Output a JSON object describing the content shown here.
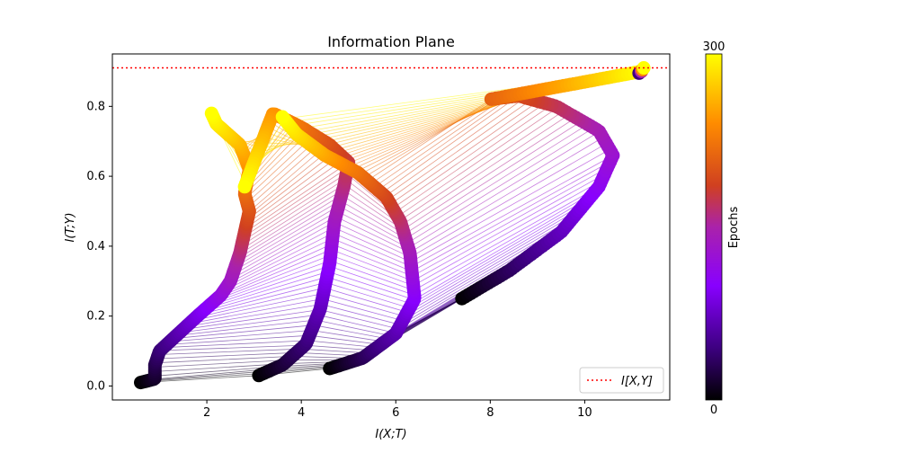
{
  "chart_data": {
    "type": "scatter",
    "title": "Information Plane",
    "xlabel": "I(X;T)",
    "ylabel": "I(T;Y)",
    "xlim": [
      0.0,
      11.8
    ],
    "ylim": [
      -0.04,
      0.95
    ],
    "xticks": [
      "2",
      "4",
      "6",
      "8",
      "10"
    ],
    "xtick_values": [
      2,
      4,
      6,
      8,
      10
    ],
    "yticks": [
      "0.0",
      "0.2",
      "0.4",
      "0.6",
      "0.8"
    ],
    "ytick_values": [
      0.0,
      0.2,
      0.4,
      0.6,
      0.8
    ],
    "grid": false,
    "reference_line": {
      "label": "I[X,Y]",
      "y": 0.91,
      "color": "#ff0000",
      "style": "dotted"
    },
    "legend_position": "lower-right",
    "colorbar": {
      "label": "Epochs",
      "min_label": "0",
      "max_label": "300",
      "min": 0,
      "max": 300,
      "colormap": "gnuplot"
    },
    "series": [
      {
        "points": [
          [
            0.6,
            0.01
          ],
          [
            0.9,
            0.02
          ],
          [
            0.9,
            0.06
          ],
          [
            1.0,
            0.1
          ],
          [
            1.4,
            0.15
          ],
          [
            1.8,
            0.2
          ],
          [
            2.3,
            0.26
          ],
          [
            2.5,
            0.3
          ],
          [
            2.7,
            0.38
          ],
          [
            2.8,
            0.44
          ],
          [
            2.9,
            0.5
          ],
          [
            2.8,
            0.55
          ],
          [
            2.9,
            0.62
          ],
          [
            2.7,
            0.69
          ],
          [
            2.2,
            0.75
          ],
          [
            2.1,
            0.78
          ]
        ]
      },
      {
        "points": [
          [
            3.1,
            0.03
          ],
          [
            3.6,
            0.06
          ],
          [
            4.1,
            0.12
          ],
          [
            4.4,
            0.22
          ],
          [
            4.6,
            0.35
          ],
          [
            4.7,
            0.47
          ],
          [
            4.9,
            0.57
          ],
          [
            5.0,
            0.64
          ],
          [
            4.6,
            0.69
          ],
          [
            4.0,
            0.74
          ],
          [
            3.4,
            0.78
          ],
          [
            2.8,
            0.57
          ]
        ]
      },
      {
        "points": [
          [
            4.6,
            0.05
          ],
          [
            5.3,
            0.08
          ],
          [
            6.0,
            0.15
          ],
          [
            6.4,
            0.25
          ],
          [
            6.3,
            0.38
          ],
          [
            6.1,
            0.47
          ],
          [
            5.8,
            0.54
          ],
          [
            5.2,
            0.61
          ],
          [
            4.5,
            0.66
          ],
          [
            3.9,
            0.72
          ],
          [
            3.6,
            0.77
          ]
        ]
      },
      {
        "points": [
          [
            7.4,
            0.25
          ],
          [
            8.4,
            0.33
          ],
          [
            9.5,
            0.44
          ],
          [
            10.3,
            0.57
          ],
          [
            10.6,
            0.66
          ],
          [
            10.3,
            0.73
          ],
          [
            9.4,
            0.8
          ],
          [
            8.6,
            0.83
          ],
          [
            8.0,
            0.82
          ],
          [
            11.2,
            0.9
          ]
        ]
      }
    ]
  }
}
